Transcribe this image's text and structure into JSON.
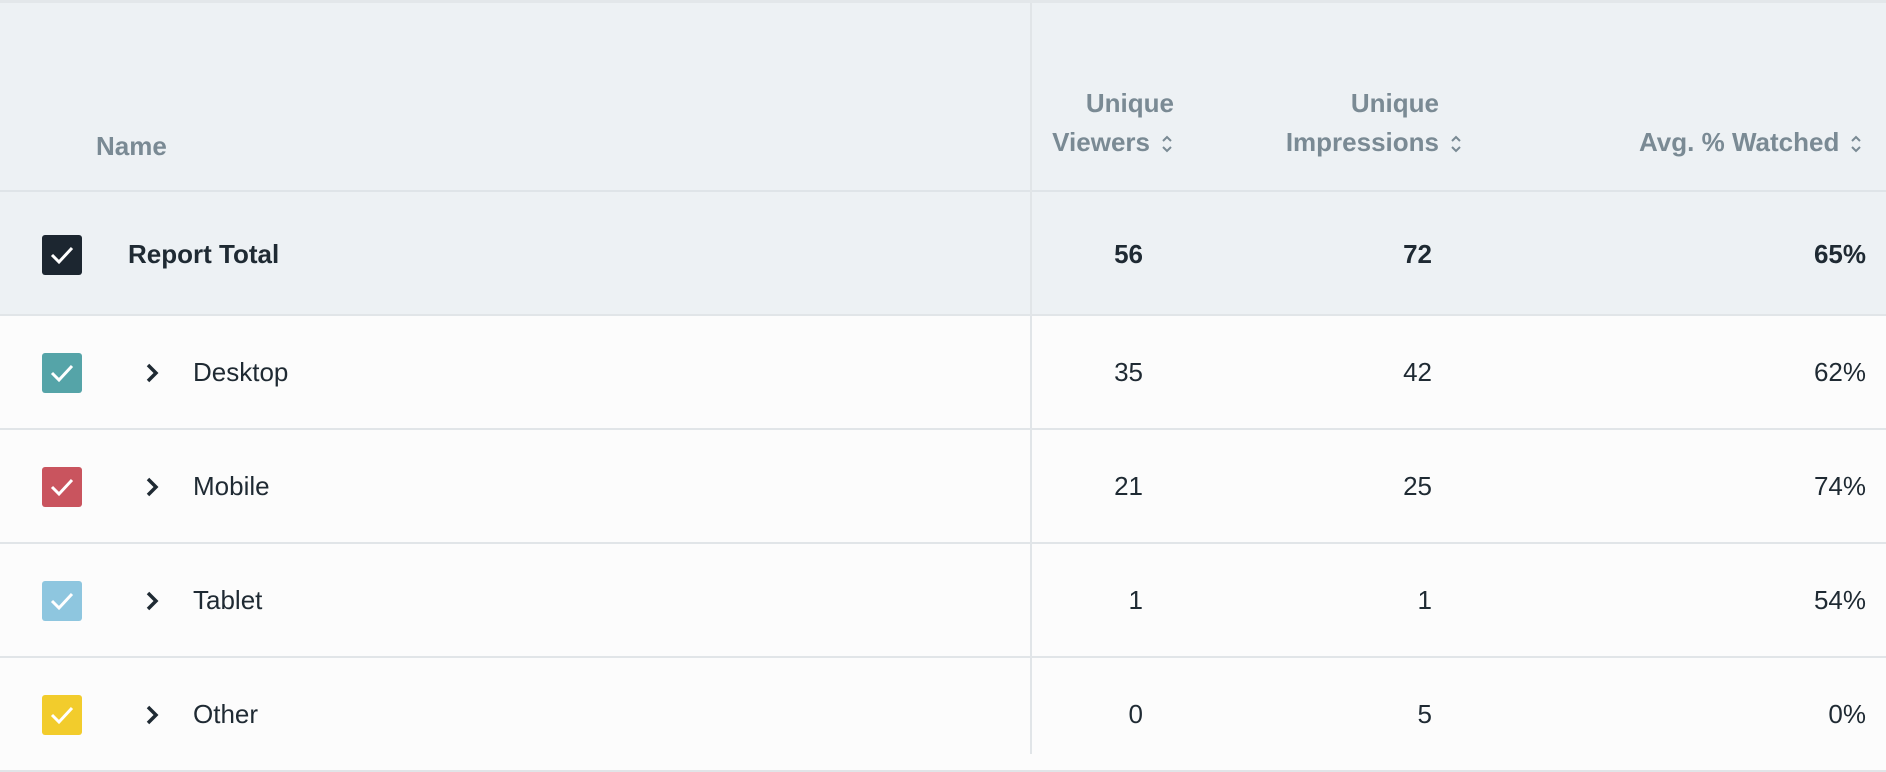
{
  "columns": {
    "name": "Name",
    "viewers_line1": "Unique",
    "viewers_line2": "Viewers",
    "impressions_line1": "Unique",
    "impressions_line2": "Impressions",
    "avg": "Avg. % Watched"
  },
  "total": {
    "name": "Report Total",
    "viewers": "56",
    "impressions": "72",
    "avg": "65%",
    "color": "#1c2630"
  },
  "rows": [
    {
      "name": "Desktop",
      "viewers": "35",
      "impressions": "42",
      "avg": "62%",
      "color": "#55a4a8"
    },
    {
      "name": "Mobile",
      "viewers": "21",
      "impressions": "25",
      "avg": "74%",
      "color": "#c9545e"
    },
    {
      "name": "Tablet",
      "viewers": "1",
      "impressions": "1",
      "avg": "54%",
      "color": "#8ec6df"
    },
    {
      "name": "Other",
      "viewers": "0",
      "impressions": "5",
      "avg": "0%",
      "color": "#f2cc2c"
    }
  ]
}
